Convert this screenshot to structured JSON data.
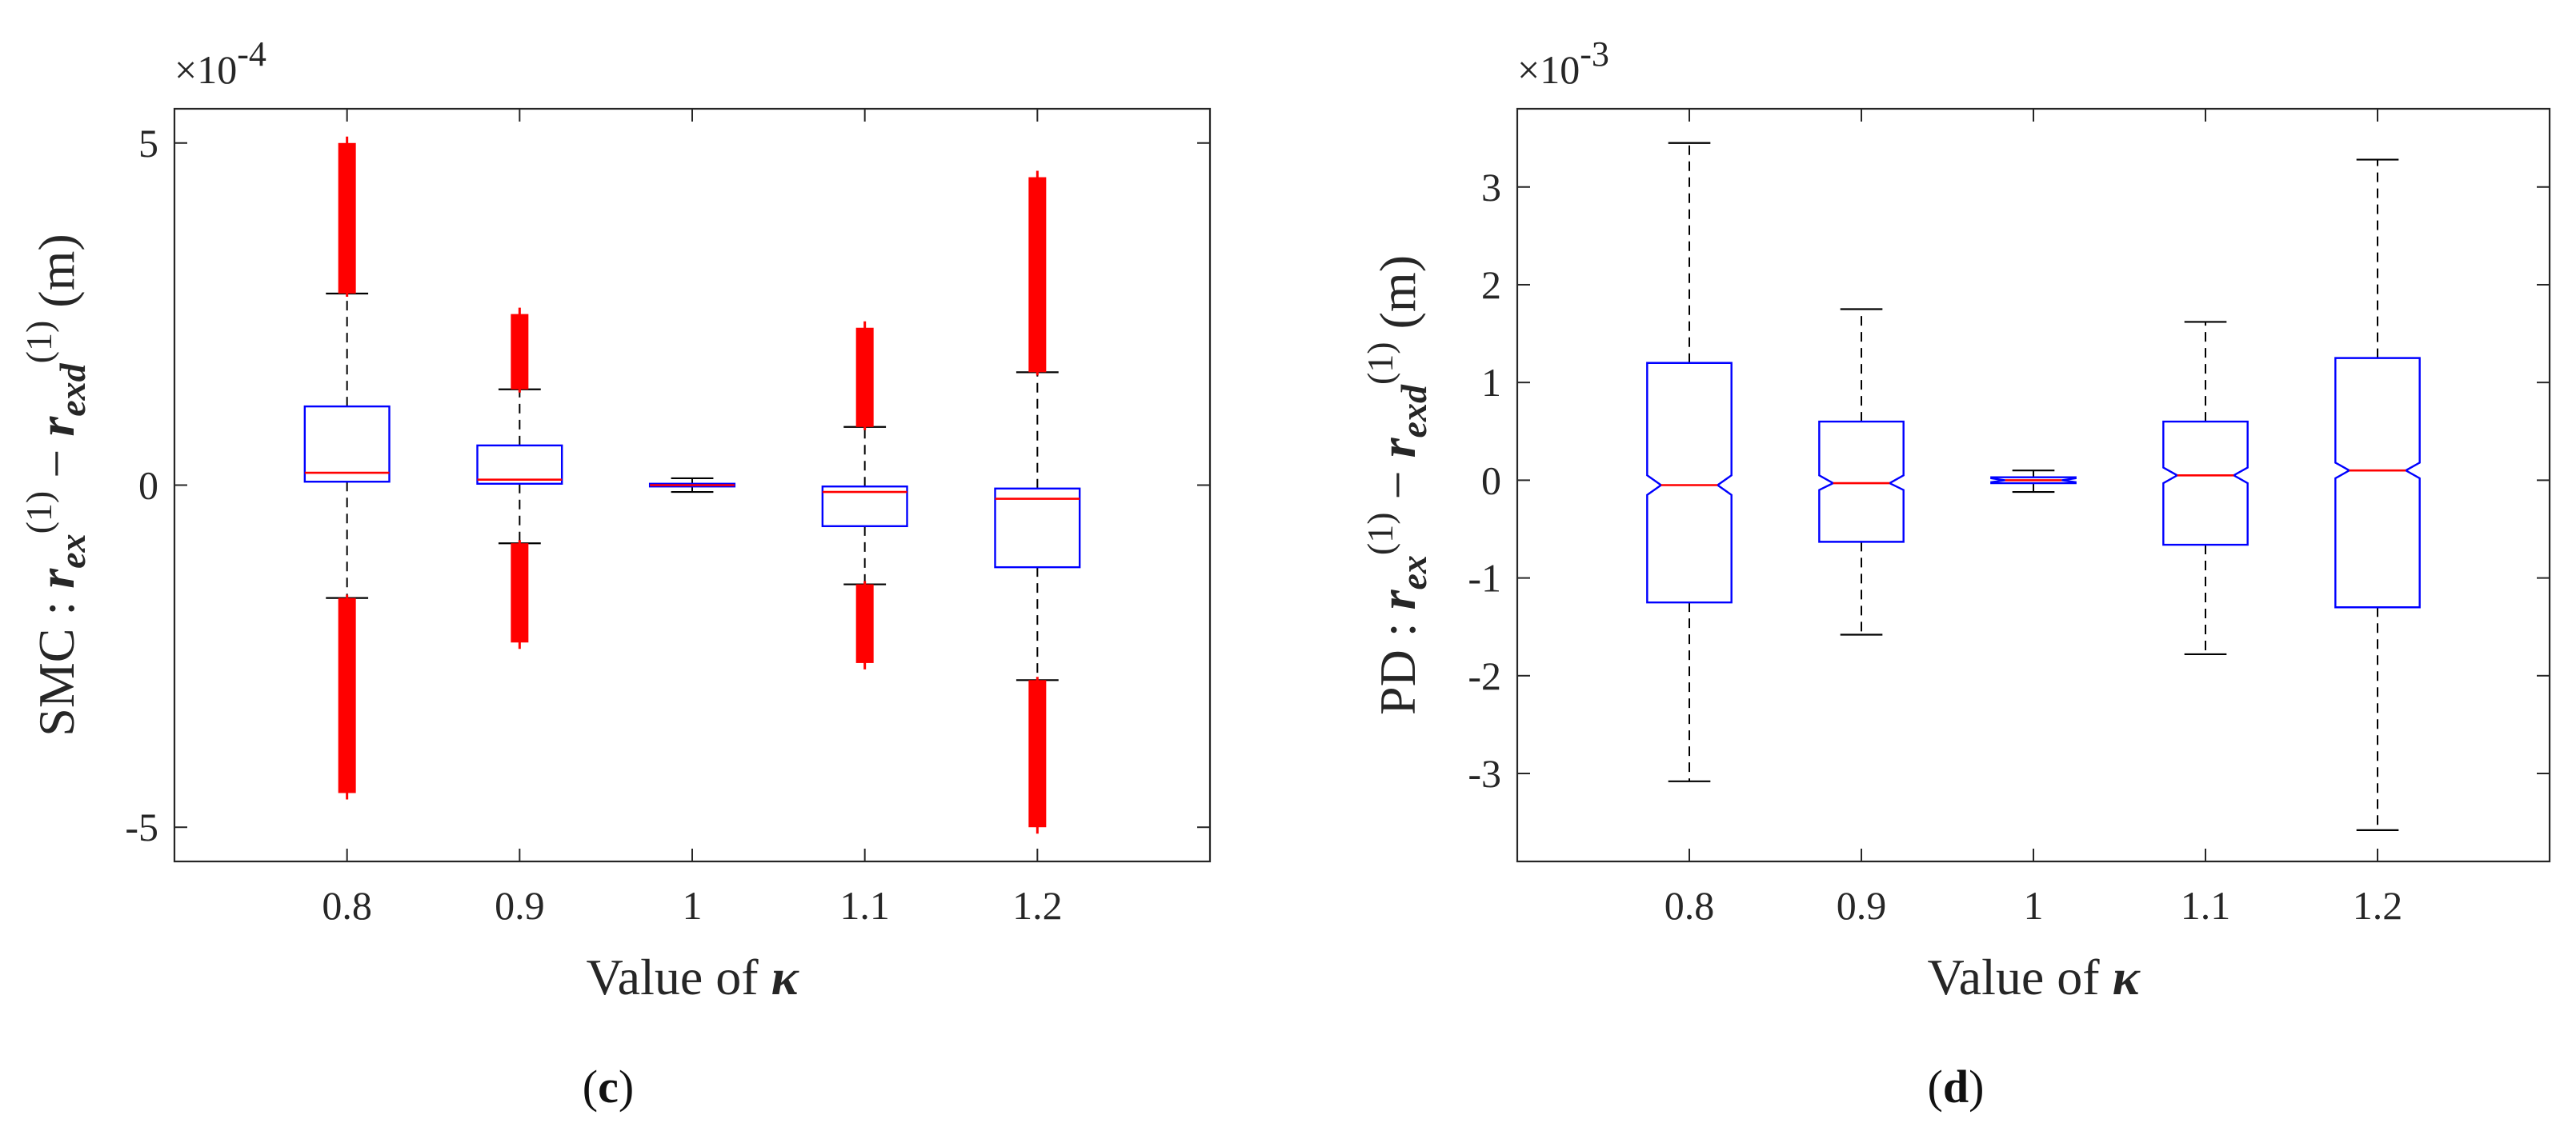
{
  "chart_data": [
    {
      "type": "boxplot",
      "panel_label": "(c)",
      "panel_letter": "c",
      "ylabel": {
        "prefix": "SMC : ",
        "var1": "r",
        "sub1": "ex",
        "sup": "(1)",
        "minus": " − ",
        "var2": "r",
        "sub2": "exd",
        "unit": " (m)"
      },
      "xlabel": {
        "text": "Value of ",
        "symbol": "κ"
      },
      "scale_exponent": {
        "base": "×10",
        "exp": "-4"
      },
      "ylim": [
        -5.5,
        5.5
      ],
      "yticks": [
        -5,
        0,
        5
      ],
      "ytick_labels": [
        "-5",
        "0",
        "5"
      ],
      "categories": [
        "0.8",
        "0.9",
        "1",
        "1.1",
        "1.2"
      ],
      "notched": false,
      "boxes": [
        {
          "q1": 0.05,
          "median": 0.18,
          "q3": 1.15,
          "whisker_low": -1.65,
          "whisker_high": 2.8,
          "outlier_low": -4.5,
          "outlier_high": 5.0
        },
        {
          "q1": 0.02,
          "median": 0.08,
          "q3": 0.58,
          "whisker_low": -0.85,
          "whisker_high": 1.4,
          "outlier_low": -2.3,
          "outlier_high": 2.5
        },
        {
          "q1": -0.02,
          "median": 0.0,
          "q3": 0.02,
          "whisker_low": -0.1,
          "whisker_high": 0.1,
          "outlier_low": null,
          "outlier_high": null
        },
        {
          "q1": -0.6,
          "median": -0.1,
          "q3": -0.02,
          "whisker_low": -1.45,
          "whisker_high": 0.85,
          "outlier_low": -2.6,
          "outlier_high": 2.3
        },
        {
          "q1": -1.2,
          "median": -0.2,
          "q3": -0.05,
          "whisker_low": -2.85,
          "whisker_high": 1.65,
          "outlier_low": -5.0,
          "outlier_high": 4.5
        }
      ]
    },
    {
      "type": "boxplot",
      "panel_label": "(d)",
      "panel_letter": "d",
      "ylabel": {
        "prefix": "PD : ",
        "var1": "r",
        "sub1": "ex",
        "sup": "(1)",
        "minus": " − ",
        "var2": "r",
        "sub2": "exd",
        "unit": " (m)"
      },
      "xlabel": {
        "text": "Value of ",
        "symbol": "κ"
      },
      "scale_exponent": {
        "base": "×10",
        "exp": "-3"
      },
      "ylim": [
        -3.9,
        3.8
      ],
      "yticks": [
        -3,
        -2,
        -1,
        0,
        1,
        2,
        3
      ],
      "ytick_labels": [
        "-3",
        "-2",
        "-1",
        "0",
        "1",
        "2",
        "3"
      ],
      "categories": [
        "0.8",
        "0.9",
        "1",
        "1.1",
        "1.2"
      ],
      "notched": true,
      "boxes": [
        {
          "q1": -1.25,
          "median": -0.05,
          "q3": 1.2,
          "whisker_low": -3.08,
          "whisker_high": 3.45,
          "notch_low": -0.15,
          "notch_high": 0.05
        },
        {
          "q1": -0.63,
          "median": -0.03,
          "q3": 0.6,
          "whisker_low": -1.58,
          "whisker_high": 1.75,
          "notch_low": -0.1,
          "notch_high": 0.05
        },
        {
          "q1": -0.03,
          "median": 0.0,
          "q3": 0.03,
          "whisker_low": -0.12,
          "whisker_high": 0.1,
          "notch_low": -0.02,
          "notch_high": 0.02
        },
        {
          "q1": -0.66,
          "median": 0.05,
          "q3": 0.6,
          "whisker_low": -1.78,
          "whisker_high": 1.62,
          "notch_low": -0.03,
          "notch_high": 0.13
        },
        {
          "q1": -1.3,
          "median": 0.1,
          "q3": 1.25,
          "whisker_low": -3.58,
          "whisker_high": 3.28,
          "notch_low": 0.02,
          "notch_high": 0.18
        }
      ]
    }
  ],
  "colors": {
    "box": "#0000ff",
    "median": "#ff0000",
    "outlier": "#ff0000",
    "whisker": "#000000",
    "axis": "#262626"
  }
}
